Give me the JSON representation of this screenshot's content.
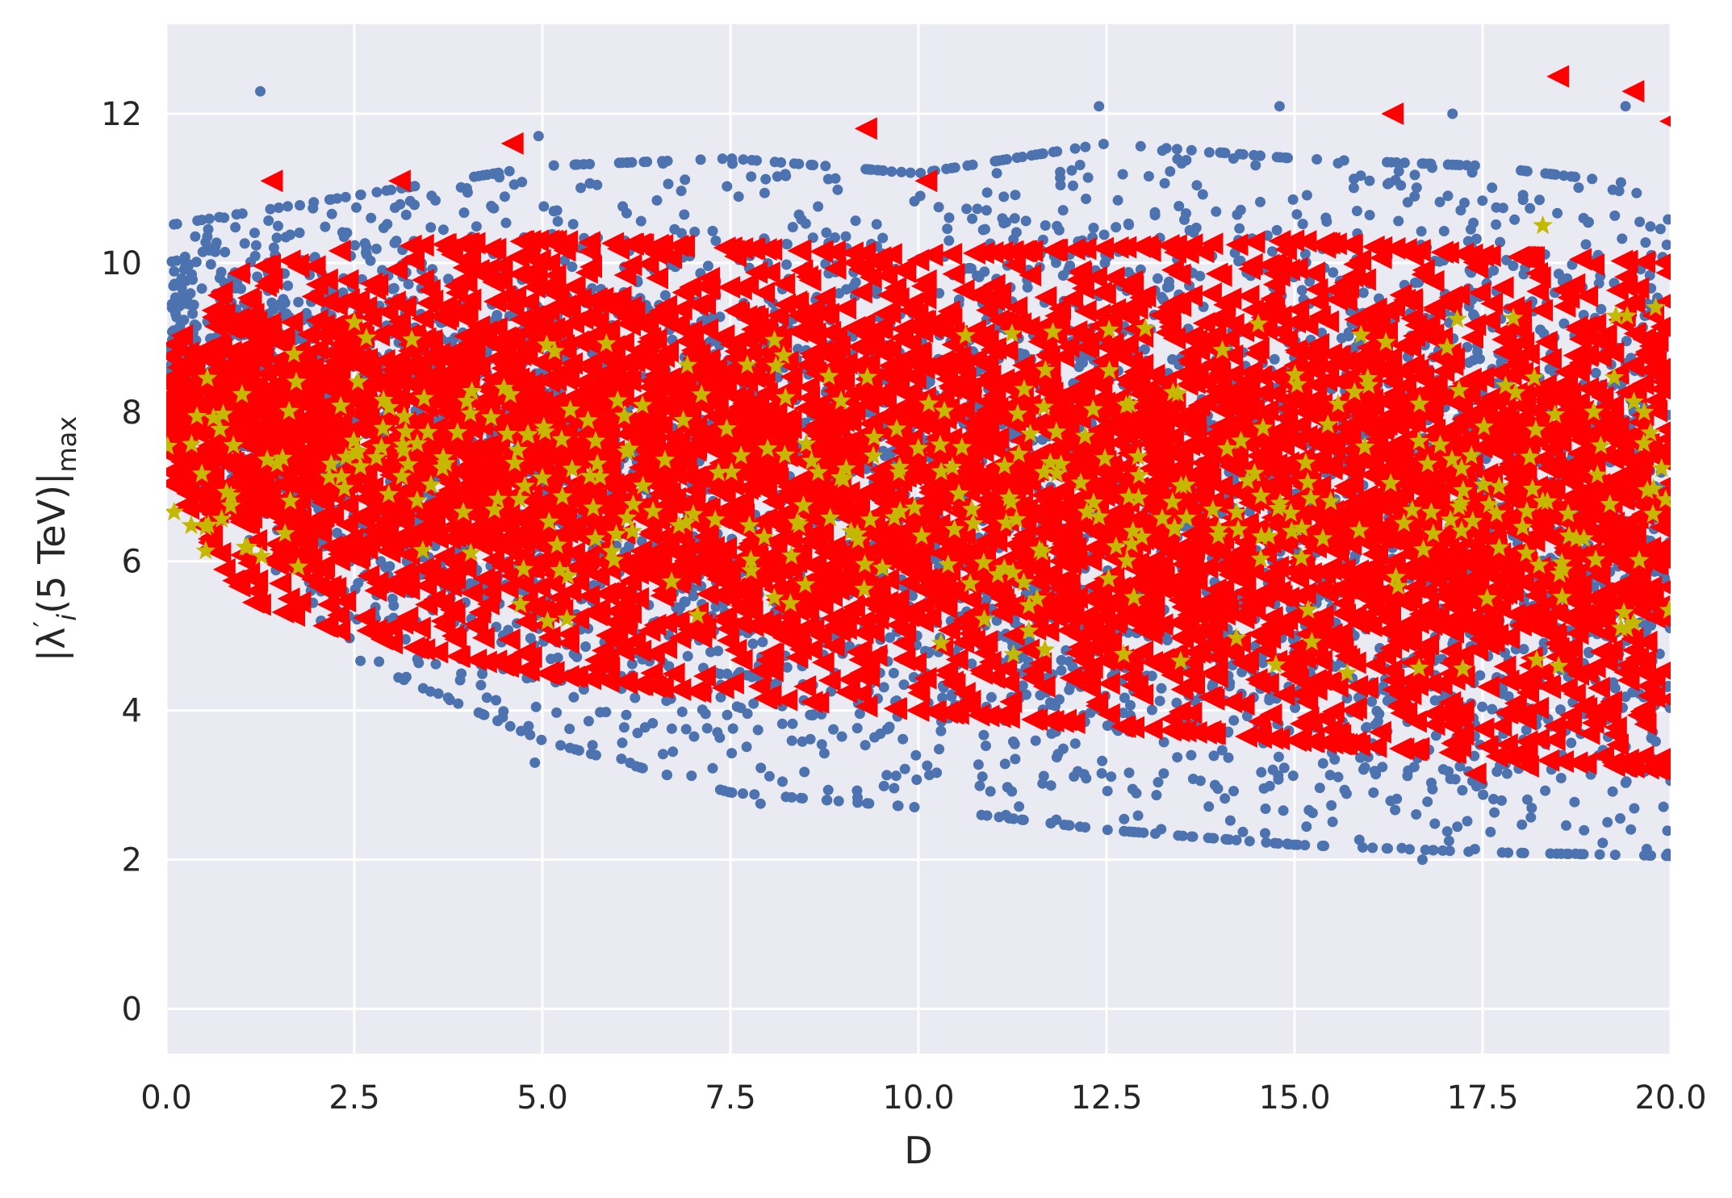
{
  "chart_data": {
    "type": "scatter",
    "title": "",
    "xlabel": "D",
    "ylabel_parts": {
      "base": "|λ",
      "sub_i": "i",
      "prime": "′",
      "middle": "(5 TeV)|",
      "sub_max": "max"
    },
    "xlim": [
      0,
      20
    ],
    "ylim": [
      -0.6,
      13.2
    ],
    "xticks": [
      0,
      2.5,
      5,
      7.5,
      10,
      12.5,
      15,
      17.5,
      20
    ],
    "xtick_labels": [
      "0.0",
      "2.5",
      "5.0",
      "7.5",
      "10.0",
      "12.5",
      "15.0",
      "17.5",
      "20.0"
    ],
    "yticks": [
      0,
      2,
      4,
      6,
      8,
      10,
      12
    ],
    "ytick_labels": [
      "0",
      "2",
      "4",
      "6",
      "8",
      "10",
      "12"
    ],
    "grid": true,
    "legend": "none",
    "style": {
      "background": "#eaeaf2",
      "grid_color": "#ffffff"
    },
    "series": [
      {
        "marker": "circle",
        "color": "#4c72b0",
        "density": "dense",
        "upper_envelope": [
          [
            0,
            10.5
          ],
          [
            2.5,
            10.9
          ],
          [
            5,
            11.3
          ],
          [
            7.5,
            11.4
          ],
          [
            10,
            11.2
          ],
          [
            12.5,
            11.6
          ],
          [
            15,
            11.4
          ],
          [
            17.5,
            11.3
          ],
          [
            20,
            11.0
          ]
        ],
        "lower_envelope": [
          [
            0,
            7.6
          ],
          [
            1,
            6.4
          ],
          [
            2.5,
            4.7
          ],
          [
            5,
            3.6
          ],
          [
            7.5,
            2.9
          ],
          [
            10,
            2.7
          ],
          [
            12.5,
            2.4
          ],
          [
            15,
            2.2
          ],
          [
            17.5,
            2.1
          ],
          [
            20,
            2.05
          ]
        ],
        "outliers": [
          [
            1.25,
            12.3
          ],
          [
            4.95,
            11.7
          ],
          [
            12.4,
            12.1
          ],
          [
            14.8,
            12.1
          ],
          [
            17.1,
            12.0
          ],
          [
            19.4,
            12.1
          ],
          [
            16.7,
            2.0
          ],
          [
            4.9,
            3.3
          ],
          [
            7.9,
            2.75
          ]
        ]
      },
      {
        "marker": "triangle-left",
        "color": "#ff0000",
        "density": "dense",
        "upper_envelope": [
          [
            0,
            8.8
          ],
          [
            1,
            9.9
          ],
          [
            2.5,
            10.2
          ],
          [
            5,
            10.3
          ],
          [
            7.5,
            10.2
          ],
          [
            10,
            10.1
          ],
          [
            12.5,
            10.2
          ],
          [
            15,
            10.3
          ],
          [
            17.5,
            10.1
          ],
          [
            20,
            10.0
          ]
        ],
        "lower_envelope": [
          [
            0,
            7.2
          ],
          [
            1,
            5.5
          ],
          [
            2.5,
            5.0
          ],
          [
            5,
            4.5
          ],
          [
            7.5,
            4.2
          ],
          [
            10,
            4.0
          ],
          [
            12.5,
            3.8
          ],
          [
            15,
            3.6
          ],
          [
            17.5,
            3.4
          ],
          [
            20,
            3.2
          ]
        ],
        "outliers": [
          [
            1.4,
            11.1
          ],
          [
            3.1,
            11.1
          ],
          [
            4.6,
            11.6
          ],
          [
            9.3,
            11.8
          ],
          [
            10.1,
            11.1
          ],
          [
            16.3,
            12.0
          ],
          [
            18.5,
            12.5
          ],
          [
            19.5,
            12.3
          ],
          [
            20,
            11.9
          ],
          [
            17.4,
            3.15
          ],
          [
            18.1,
            3.25
          ]
        ]
      },
      {
        "marker": "star",
        "color": "#c4b800",
        "density": "sparse",
        "upper_envelope": [
          [
            0,
            8.3
          ],
          [
            2.5,
            9.0
          ],
          [
            5,
            8.9
          ],
          [
            10,
            9.0
          ],
          [
            15,
            9.2
          ],
          [
            20,
            9.3
          ]
        ],
        "lower_envelope": [
          [
            0,
            6.0
          ],
          [
            2.5,
            5.6
          ],
          [
            5,
            5.2
          ],
          [
            10,
            4.8
          ],
          [
            15,
            4.6
          ],
          [
            20,
            4.5
          ]
        ],
        "outliers": [
          [
            18.3,
            10.5
          ],
          [
            2.5,
            9.2
          ],
          [
            19.8,
            9.4
          ],
          [
            10.3,
            4.9
          ],
          [
            15.7,
            4.5
          ]
        ]
      }
    ]
  }
}
